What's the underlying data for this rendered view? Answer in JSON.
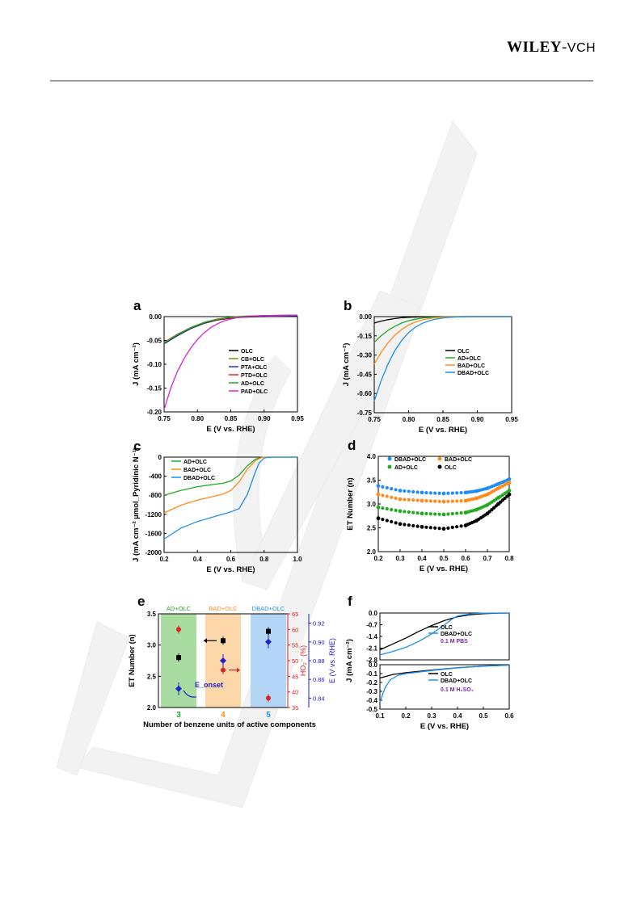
{
  "header": {
    "brand_bold": "WILEY",
    "brand_sep": "-",
    "brand_rest": "VCH"
  },
  "watermark_text": "VCH",
  "colors": {
    "OLC": "#000000",
    "CB+OLC": "#8a8a00",
    "PTA+OLC": "#2233dd",
    "PTD+OLC": "#ee2222",
    "AD+OLC": "#22aa22",
    "PAD+OLC": "#dd22cc",
    "BAD+OLC": "#ff8c1a",
    "DBAD+OLC": "#1f8ef0",
    "red": "#dd2222",
    "blue": "#2222cc"
  },
  "chart_data": [
    {
      "id": "a",
      "label": "a",
      "type": "line",
      "xlabel": "E (V vs. RHE)",
      "ylabel": "J (mA cm⁻²)",
      "xlim": [
        0.75,
        0.95
      ],
      "ylim": [
        -0.2,
        0.0
      ],
      "xticks": [
        0.75,
        0.8,
        0.85,
        0.9,
        0.95
      ],
      "xtick_labels": [
        "0.75",
        "0.80",
        "0.85",
        "0.90",
        "0.95"
      ],
      "yticks": [
        0.0,
        -0.05,
        -0.1,
        -0.15,
        -0.2
      ],
      "ytick_labels": [
        "0.00",
        "-0.05",
        "-0.10",
        "-0.15",
        "-0.20"
      ],
      "legend_position": "right",
      "series": [
        {
          "name": "OLC",
          "x": [
            0.75,
            0.77,
            0.79,
            0.81,
            0.83,
            0.85,
            0.87,
            0.9,
            0.95
          ],
          "y": [
            -0.057,
            -0.04,
            -0.025,
            -0.014,
            -0.007,
            -0.003,
            -0.001,
            0.0,
            0.001
          ]
        },
        {
          "name": "CB+OLC",
          "x": [
            0.75,
            0.77,
            0.79,
            0.81,
            0.83,
            0.85,
            0.87,
            0.9,
            0.95
          ],
          "y": [
            -0.055,
            -0.038,
            -0.024,
            -0.013,
            -0.006,
            -0.002,
            0.0,
            0.001,
            0.002
          ]
        },
        {
          "name": "PTA+OLC",
          "x": [
            0.75,
            0.77,
            0.79,
            0.81,
            0.83,
            0.85,
            0.87,
            0.9,
            0.95
          ],
          "y": [
            -0.056,
            -0.039,
            -0.024,
            -0.013,
            -0.006,
            -0.002,
            0.0,
            0.001,
            0.002
          ]
        },
        {
          "name": "PTD+OLC",
          "x": [
            0.75,
            0.77,
            0.79,
            0.81,
            0.83,
            0.85,
            0.87,
            0.9,
            0.95
          ],
          "y": [
            -0.054,
            -0.037,
            -0.023,
            -0.012,
            -0.006,
            -0.002,
            0.0,
            0.002,
            0.003
          ]
        },
        {
          "name": "AD+OLC",
          "x": [
            0.75,
            0.77,
            0.79,
            0.81,
            0.83,
            0.85,
            0.87,
            0.9,
            0.95
          ],
          "y": [
            -0.055,
            -0.038,
            -0.023,
            -0.012,
            -0.005,
            -0.001,
            0.001,
            0.002,
            0.003
          ]
        },
        {
          "name": "PAD+OLC",
          "x": [
            0.75,
            0.76,
            0.77,
            0.78,
            0.79,
            0.8,
            0.81,
            0.82,
            0.83,
            0.84,
            0.85,
            0.86,
            0.87,
            0.9,
            0.95
          ],
          "y": [
            -0.195,
            -0.15,
            -0.115,
            -0.088,
            -0.066,
            -0.048,
            -0.034,
            -0.023,
            -0.015,
            -0.009,
            -0.005,
            -0.002,
            0.0,
            0.002,
            0.003
          ]
        }
      ]
    },
    {
      "id": "b",
      "label": "b",
      "type": "line",
      "xlabel": "E (V vs. RHE)",
      "ylabel": "J (mA cm⁻²)",
      "xlim": [
        0.75,
        0.95
      ],
      "ylim": [
        -0.75,
        0.0
      ],
      "xticks": [
        0.75,
        0.8,
        0.85,
        0.9,
        0.95
      ],
      "xtick_labels": [
        "0.75",
        "0.80",
        "0.85",
        "0.90",
        "0.95"
      ],
      "yticks": [
        0.0,
        -0.15,
        -0.3,
        -0.45,
        -0.6,
        -0.75
      ],
      "ytick_labels": [
        "0.00",
        "-0.15",
        "-0.30",
        "-0.45",
        "-0.60",
        "-0.75"
      ],
      "legend_position": "right",
      "series": [
        {
          "name": "OLC",
          "x": [
            0.75,
            0.76,
            0.77,
            0.78,
            0.79,
            0.8,
            0.82,
            0.84,
            0.86,
            0.9,
            0.95
          ],
          "y": [
            -0.05,
            -0.035,
            -0.024,
            -0.015,
            -0.009,
            -0.005,
            -0.002,
            0.0,
            0.0,
            0.0,
            0.0
          ]
        },
        {
          "name": "AD+OLC",
          "x": [
            0.75,
            0.76,
            0.77,
            0.78,
            0.79,
            0.8,
            0.81,
            0.82,
            0.83,
            0.84,
            0.86,
            0.9,
            0.95
          ],
          "y": [
            -0.2,
            -0.15,
            -0.108,
            -0.075,
            -0.05,
            -0.032,
            -0.02,
            -0.012,
            -0.006,
            -0.003,
            0.0,
            0.0,
            0.0
          ]
        },
        {
          "name": "BAD+OLC",
          "x": [
            0.75,
            0.76,
            0.77,
            0.78,
            0.79,
            0.8,
            0.81,
            0.82,
            0.83,
            0.84,
            0.85,
            0.86,
            0.88,
            0.9,
            0.95
          ],
          "y": [
            -0.37,
            -0.28,
            -0.205,
            -0.145,
            -0.1,
            -0.066,
            -0.042,
            -0.026,
            -0.015,
            -0.008,
            -0.004,
            -0.002,
            0.0,
            0.0,
            0.0
          ]
        },
        {
          "name": "DBAD+OLC",
          "x": [
            0.75,
            0.76,
            0.77,
            0.78,
            0.79,
            0.8,
            0.81,
            0.82,
            0.83,
            0.84,
            0.85,
            0.86,
            0.87,
            0.88,
            0.9,
            0.95
          ],
          "y": [
            -0.66,
            -0.5,
            -0.37,
            -0.265,
            -0.185,
            -0.125,
            -0.082,
            -0.052,
            -0.032,
            -0.019,
            -0.011,
            -0.006,
            -0.003,
            -0.001,
            0.0,
            0.0
          ]
        }
      ]
    },
    {
      "id": "c",
      "label": "c",
      "type": "line",
      "xlabel": "E (V vs. RHE)",
      "ylabel": "J (mA cm⁻² µmol_Pyridinic N⁻¹)",
      "xlim": [
        0.2,
        1.0
      ],
      "ylim": [
        -2000,
        0
      ],
      "xticks": [
        0.2,
        0.4,
        0.6,
        0.8,
        1.0
      ],
      "xtick_labels": [
        "0.2",
        "0.4",
        "0.6",
        "0.8",
        "1.0"
      ],
      "yticks": [
        0,
        -400,
        -800,
        -1200,
        -1600,
        -2000
      ],
      "ytick_labels": [
        "0",
        "-400",
        "-800",
        "-1200",
        "-1600",
        "-2000"
      ],
      "legend_position": "top-left",
      "series": [
        {
          "name": "AD+OLC",
          "x": [
            0.2,
            0.3,
            0.4,
            0.5,
            0.55,
            0.6,
            0.65,
            0.7,
            0.75,
            0.78,
            0.8,
            0.85,
            1.0
          ],
          "y": [
            -800,
            -700,
            -620,
            -570,
            -550,
            -500,
            -380,
            -180,
            -40,
            -10,
            0,
            0,
            0
          ]
        },
        {
          "name": "BAD+OLC",
          "x": [
            0.2,
            0.3,
            0.4,
            0.5,
            0.55,
            0.6,
            0.65,
            0.7,
            0.75,
            0.78,
            0.8,
            0.85,
            1.0
          ],
          "y": [
            -1170,
            -1010,
            -900,
            -820,
            -780,
            -700,
            -520,
            -250,
            -70,
            -15,
            -3,
            0,
            0
          ]
        },
        {
          "name": "DBAD+OLC",
          "x": [
            0.2,
            0.3,
            0.4,
            0.5,
            0.55,
            0.6,
            0.65,
            0.7,
            0.74,
            0.77,
            0.8,
            0.82,
            0.85,
            1.0
          ],
          "y": [
            -1720,
            -1490,
            -1350,
            -1250,
            -1200,
            -1150,
            -1080,
            -780,
            -380,
            -120,
            -20,
            -5,
            0,
            0
          ]
        }
      ]
    },
    {
      "id": "d",
      "label": "d",
      "type": "scatter",
      "xlabel": "E (V vs. RHE)",
      "ylabel": "ET Number (n)",
      "xlim": [
        0.2,
        0.8
      ],
      "ylim": [
        2.0,
        4.0
      ],
      "xticks": [
        0.2,
        0.3,
        0.4,
        0.5,
        0.6,
        0.7,
        0.8
      ],
      "xtick_labels": [
        "0.2",
        "0.3",
        "0.4",
        "0.5",
        "0.6",
        "0.7",
        "0.8"
      ],
      "yticks": [
        2.0,
        2.5,
        3.0,
        3.5,
        4.0
      ],
      "ytick_labels": [
        "2.0",
        "2.5",
        "3.0",
        "3.5",
        "4.0"
      ],
      "legend_position": "top",
      "series": [
        {
          "name": "DBAD+OLC",
          "x": [
            0.2,
            0.3,
            0.4,
            0.5,
            0.6,
            0.65,
            0.7,
            0.75,
            0.8
          ],
          "y": [
            3.38,
            3.28,
            3.24,
            3.22,
            3.24,
            3.27,
            3.33,
            3.42,
            3.52
          ]
        },
        {
          "name": "BAD+OLC",
          "x": [
            0.2,
            0.3,
            0.4,
            0.5,
            0.6,
            0.65,
            0.7,
            0.75,
            0.8
          ],
          "y": [
            3.2,
            3.1,
            3.07,
            3.05,
            3.07,
            3.12,
            3.2,
            3.33,
            3.45
          ]
        },
        {
          "name": "AD+OLC",
          "x": [
            0.2,
            0.3,
            0.4,
            0.5,
            0.6,
            0.65,
            0.7,
            0.75,
            0.8
          ],
          "y": [
            2.93,
            2.85,
            2.8,
            2.78,
            2.82,
            2.88,
            2.98,
            3.13,
            3.28
          ]
        },
        {
          "name": "OLC",
          "x": [
            0.2,
            0.3,
            0.4,
            0.5,
            0.6,
            0.65,
            0.7,
            0.75,
            0.8
          ],
          "y": [
            2.7,
            2.58,
            2.52,
            2.48,
            2.55,
            2.65,
            2.8,
            3.0,
            3.2
          ]
        }
      ]
    },
    {
      "id": "e",
      "label": "e",
      "type": "scatter",
      "xlabel": "Number of benzene units of active components",
      "ylabel_left": "ET Number (n)",
      "ylabel_mid": "HO₂⁻ (%)",
      "ylabel_right": "E (V vs. RHE)",
      "categories": [
        "3",
        "4",
        "5"
      ],
      "region_labels": [
        "AD+OLC",
        "BAD+OLC",
        "DBAD+OLC"
      ],
      "ylim_left": [
        2.0,
        3.5
      ],
      "yticks_left": [
        2.0,
        2.5,
        3.0,
        3.5
      ],
      "ytick_labels_left": [
        "2.0",
        "2.5",
        "3.0",
        "3.5"
      ],
      "ylim_mid": [
        35,
        65
      ],
      "yticks_mid": [
        35,
        40,
        45,
        50,
        55,
        60,
        65
      ],
      "ytick_labels_mid": [
        "35",
        "40",
        "45",
        "50",
        "55",
        "60",
        "65"
      ],
      "ylim_right": [
        0.83,
        0.93
      ],
      "yticks_right": [
        0.84,
        0.86,
        0.88,
        0.9,
        0.92
      ],
      "ytick_labels_right": [
        "0.84",
        "0.86",
        "0.88",
        "0.90",
        "0.92"
      ],
      "et_number": [
        2.8,
        3.07,
        3.22
      ],
      "ho2_percent": [
        60,
        47,
        38
      ],
      "e_onset": [
        0.85,
        0.88,
        0.9
      ],
      "annotation": "E_onset"
    },
    {
      "id": "f_top",
      "label": "f",
      "type": "line",
      "xlabel": "",
      "ylabel": "J (mA cm⁻²)",
      "xlim": [
        0.1,
        0.6
      ],
      "ylim": [
        -2.8,
        0.0
      ],
      "yticks": [
        0.0,
        -0.7,
        -1.4,
        -2.1,
        -2.8
      ],
      "ytick_labels": [
        "0.0",
        "-0.7",
        "-1.4",
        "-2.1",
        "-2.8"
      ],
      "note": "0.1 M PBS",
      "series": [
        {
          "name": "OLC",
          "x": [
            0.1,
            0.15,
            0.2,
            0.25,
            0.3,
            0.35,
            0.4,
            0.45,
            0.5,
            0.55,
            0.6
          ],
          "y": [
            -2.2,
            -1.85,
            -1.5,
            -1.1,
            -0.75,
            -0.45,
            -0.22,
            -0.1,
            -0.04,
            -0.01,
            0.0
          ]
        },
        {
          "name": "DBAD+OLC",
          "x": [
            0.1,
            0.15,
            0.2,
            0.25,
            0.3,
            0.35,
            0.38,
            0.4,
            0.45,
            0.5,
            0.6
          ],
          "y": [
            -2.5,
            -2.3,
            -2.05,
            -1.7,
            -1.25,
            -0.7,
            -0.35,
            -0.18,
            -0.05,
            -0.01,
            0.0
          ]
        }
      ]
    },
    {
      "id": "f_bottom",
      "label": "",
      "type": "line",
      "xlabel": "E (V vs. RHE)",
      "ylabel": "",
      "xlim": [
        0.1,
        0.6
      ],
      "ylim": [
        -0.5,
        0.0
      ],
      "xticks": [
        0.1,
        0.2,
        0.3,
        0.4,
        0.5,
        0.6
      ],
      "xtick_labels": [
        "0.1",
        "0.2",
        "0.3",
        "0.4",
        "0.5",
        "0.6"
      ],
      "yticks": [
        0.0,
        -0.1,
        -0.2,
        -0.3,
        -0.4,
        -0.5
      ],
      "ytick_labels": [
        "0.0",
        "-0.1",
        "-0.2",
        "-0.3",
        "-0.4",
        "-0.5"
      ],
      "note": "0.1 M  H₂SO₄",
      "series": [
        {
          "name": "OLC",
          "x": [
            0.1,
            0.15,
            0.2,
            0.3,
            0.4,
            0.5,
            0.6
          ],
          "y": [
            -0.15,
            -0.11,
            -0.09,
            -0.06,
            -0.035,
            -0.015,
            -0.005
          ]
        },
        {
          "name": "DBAD+OLC",
          "x": [
            0.1,
            0.12,
            0.14,
            0.17,
            0.2,
            0.3,
            0.4,
            0.5,
            0.6
          ],
          "y": [
            -0.42,
            -0.26,
            -0.17,
            -0.12,
            -0.1,
            -0.065,
            -0.035,
            -0.015,
            -0.005
          ]
        }
      ]
    }
  ]
}
